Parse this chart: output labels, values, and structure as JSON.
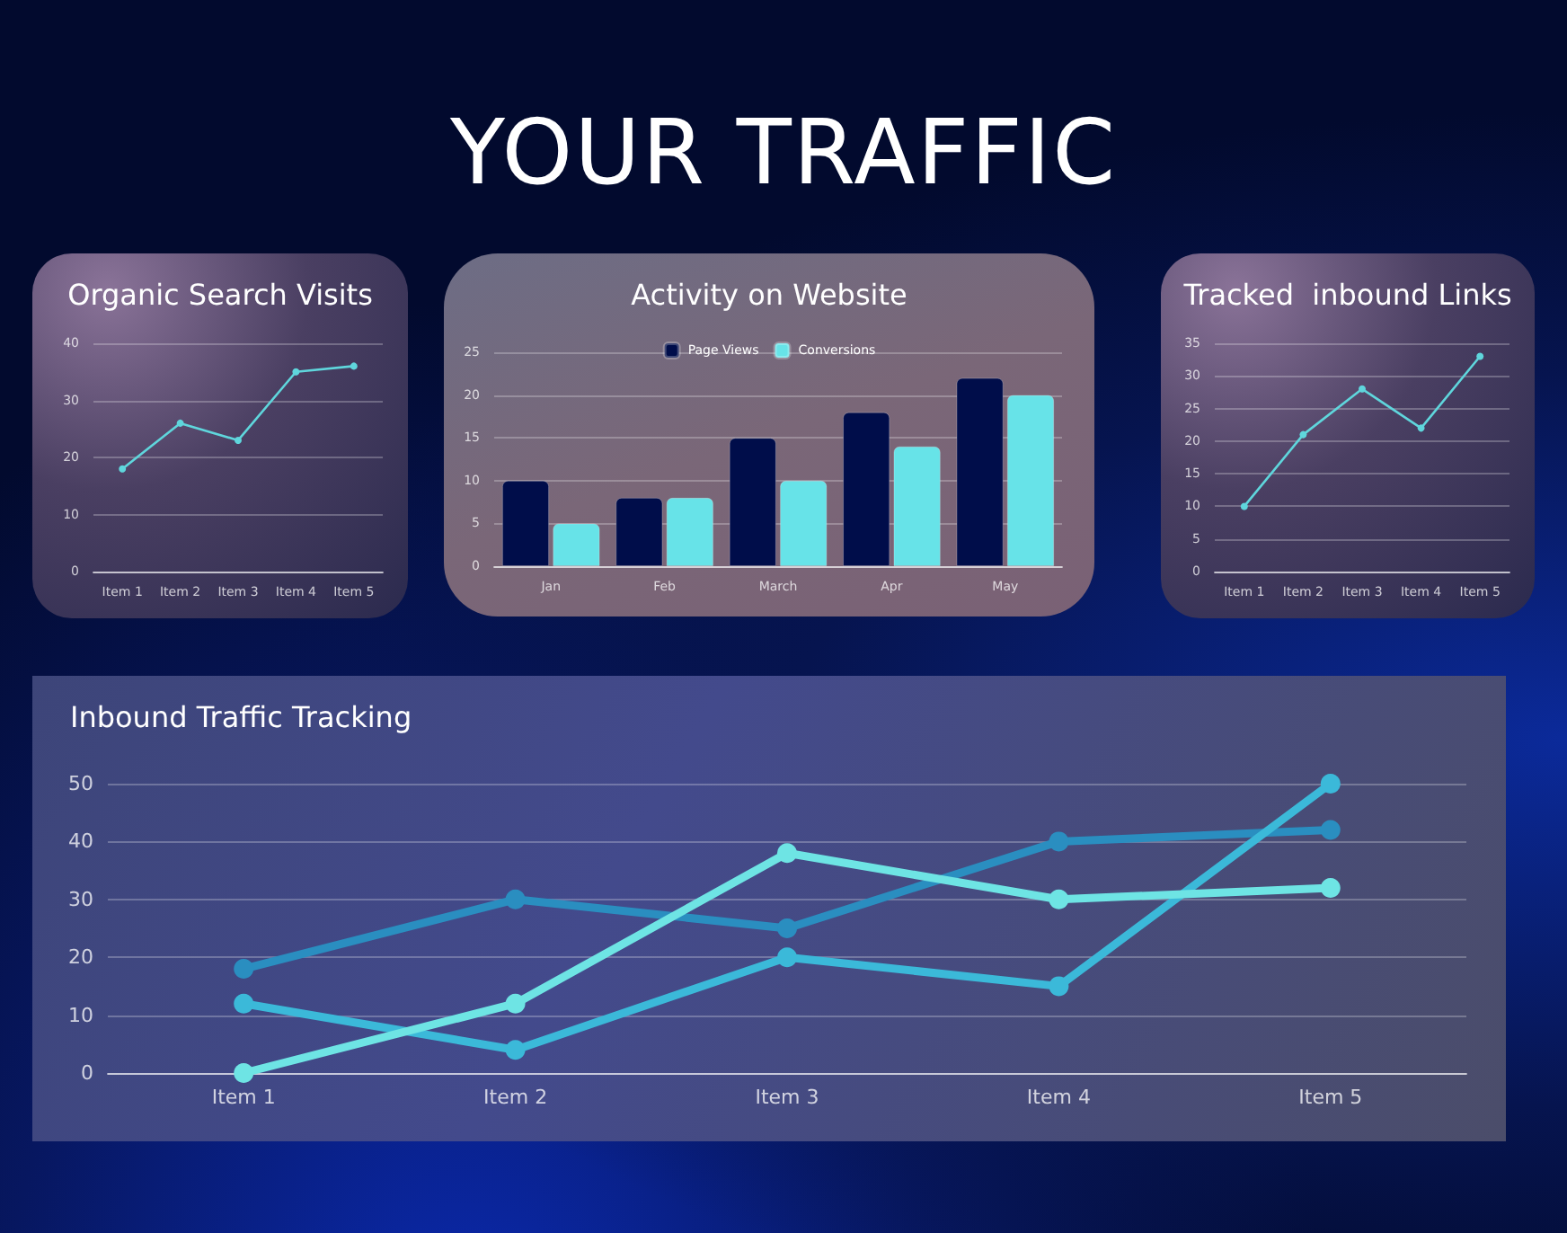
{
  "chart_data": [
    {
      "type": "other",
      "title": "YOUR TRAFFIC"
    },
    {
      "type": "line",
      "title": "Organic Search Visits",
      "categories": [
        "Item 1",
        "Item 2",
        "Item 3",
        "Item 4",
        "Item 5"
      ],
      "series": [
        {
          "color": "#5fd6dc",
          "values": [
            18,
            26,
            23,
            35,
            36
          ]
        }
      ],
      "ylim": [
        0,
        40
      ],
      "yticks": [
        0,
        10,
        20,
        30,
        40
      ],
      "grid": "y",
      "marker": "circle"
    },
    {
      "type": "bar",
      "title": "Activity on Website",
      "categories": [
        "Jan",
        "Feb",
        "March",
        "Apr",
        "May"
      ],
      "series": [
        {
          "name": "Page Views",
          "color": "#000d4a",
          "values": [
            10,
            8,
            15,
            18,
            22
          ]
        },
        {
          "name": "Conversions",
          "color": "#67e3e8",
          "values": [
            5,
            8,
            10,
            14,
            20
          ]
        }
      ],
      "ylim": [
        0,
        25
      ],
      "yticks": [
        0,
        5,
        10,
        15,
        20,
        25
      ],
      "grid": "y",
      "legend": "top"
    },
    {
      "type": "line",
      "title": "Tracked  inbound Links",
      "categories": [
        "Item 1",
        "Item 2",
        "Item 3",
        "Item 4",
        "Item 5"
      ],
      "series": [
        {
          "color": "#5fd6dc",
          "values": [
            10,
            21,
            28,
            22,
            33
          ]
        }
      ],
      "ylim": [
        0,
        35
      ],
      "yticks": [
        0,
        5,
        10,
        15,
        20,
        25,
        30,
        35
      ],
      "grid": "y",
      "marker": "circle"
    },
    {
      "type": "line",
      "title": "Inbound Traffic Tracking",
      "categories": [
        "Item 1",
        "Item 2",
        "Item 3",
        "Item 4",
        "Item 5"
      ],
      "series": [
        {
          "color": "#2a8ec0",
          "values": [
            18,
            30,
            25,
            40,
            42
          ]
        },
        {
          "color": "#3bb9d9",
          "values": [
            12,
            4,
            20,
            15,
            50
          ]
        },
        {
          "color": "#6ee4e4",
          "values": [
            0,
            12,
            38,
            30,
            32
          ]
        }
      ],
      "ylim": [
        0,
        50
      ],
      "yticks": [
        0,
        10,
        20,
        30,
        40,
        50
      ],
      "grid": "y",
      "marker": "circle"
    }
  ]
}
